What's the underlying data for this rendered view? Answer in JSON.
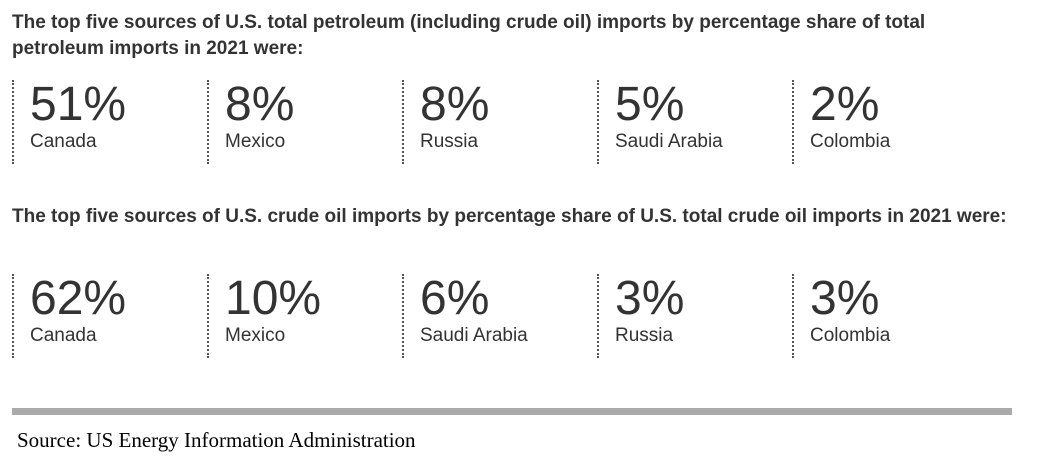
{
  "sections": [
    {
      "heading": "The top five sources of U.S. total petroleum (including crude oil) imports by percentage share of total petroleum imports in 2021 were:",
      "items": [
        {
          "value": "51%",
          "label": "Canada"
        },
        {
          "value": "8%",
          "label": "Mexico"
        },
        {
          "value": "8%",
          "label": "Russia"
        },
        {
          "value": "5%",
          "label": "Saudi Arabia"
        },
        {
          "value": "2%",
          "label": "Colombia"
        }
      ]
    },
    {
      "heading": "The top five sources of U.S. crude oil imports by percentage share of U.S. total crude oil imports in 2021 were:",
      "items": [
        {
          "value": "62%",
          "label": "Canada"
        },
        {
          "value": "10%",
          "label": "Mexico"
        },
        {
          "value": "6%",
          "label": "Saudi Arabia"
        },
        {
          "value": "3%",
          "label": "Russia"
        },
        {
          "value": "3%",
          "label": "Colombia"
        }
      ]
    }
  ],
  "source": "Source: US Energy Information Administration"
}
